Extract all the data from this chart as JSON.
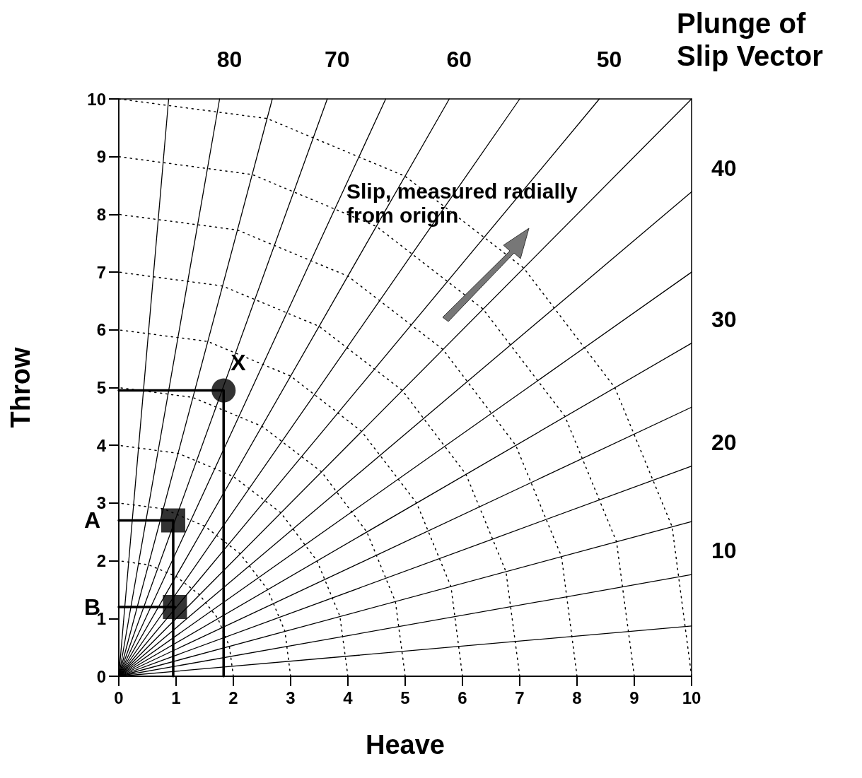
{
  "chart_data": {
    "type": "scatter",
    "xlabel": "Heave",
    "ylabel": "Throw",
    "xlim": [
      0,
      10
    ],
    "ylim": [
      0,
      10
    ],
    "xticks": [
      0,
      1,
      2,
      3,
      4,
      5,
      6,
      7,
      8,
      9,
      10
    ],
    "yticks": [
      0,
      1,
      2,
      3,
      4,
      5,
      6,
      7,
      8,
      9,
      10
    ],
    "grid": false,
    "annotations": [
      "Plunge of Slip Vector",
      "Slip, measured radially from origin",
      {
        "text": "80",
        "x": 1.76,
        "y": 10
      },
      {
        "text": "70",
        "x": 3.64,
        "y": 10
      },
      {
        "text": "60",
        "x": 5.77,
        "y": 10
      },
      {
        "text": "50",
        "x": 8.39,
        "y": 10
      },
      {
        "text": "40",
        "x": 10,
        "y": 8.39
      },
      {
        "text": "30",
        "x": 10,
        "y": 5.77
      },
      {
        "text": "20",
        "x": 10,
        "y": 3.64
      },
      {
        "text": "10",
        "x": 10,
        "y": 1.76
      },
      {
        "text": "X",
        "x": 1.83,
        "y": 4.95
      },
      {
        "text": "A",
        "x": 0,
        "y": 2.7
      },
      {
        "text": "B",
        "x": 0,
        "y": 1.2
      }
    ],
    "series": [
      {
        "type": "line",
        "color": "#000000",
        "line_style": "solid",
        "marker": "none",
        "x": [
          0,
          10
        ],
        "values": [
          0,
          0.87
        ]
      },
      {
        "type": "line",
        "color": "#000000",
        "line_style": "solid",
        "marker": "none",
        "x": [
          0,
          10
        ],
        "values": [
          0,
          1.76
        ]
      },
      {
        "type": "line",
        "color": "#000000",
        "line_style": "solid",
        "marker": "none",
        "x": [
          0,
          10
        ],
        "values": [
          0,
          2.68
        ]
      },
      {
        "type": "line",
        "color": "#000000",
        "line_style": "solid",
        "marker": "none",
        "x": [
          0,
          10
        ],
        "values": [
          0,
          3.64
        ]
      },
      {
        "type": "line",
        "color": "#000000",
        "line_style": "solid",
        "marker": "none",
        "x": [
          0,
          10
        ],
        "values": [
          0,
          4.66
        ]
      },
      {
        "type": "line",
        "color": "#000000",
        "line_style": "solid",
        "marker": "none",
        "x": [
          0,
          10
        ],
        "values": [
          0,
          5.77
        ]
      },
      {
        "type": "line",
        "color": "#000000",
        "line_style": "solid",
        "marker": "none",
        "x": [
          0,
          10
        ],
        "values": [
          0,
          7.0
        ]
      },
      {
        "type": "line",
        "color": "#000000",
        "line_style": "solid",
        "marker": "none",
        "x": [
          0,
          10
        ],
        "values": [
          0,
          8.39
        ]
      },
      {
        "type": "line",
        "color": "#000000",
        "line_style": "solid",
        "marker": "none",
        "x": [
          0,
          10
        ],
        "values": [
          0,
          10
        ]
      },
      {
        "type": "line",
        "color": "#000000",
        "line_style": "solid",
        "marker": "none",
        "x": [
          0,
          8.39
        ],
        "values": [
          0,
          10
        ]
      },
      {
        "type": "line",
        "color": "#000000",
        "line_style": "solid",
        "marker": "none",
        "x": [
          0,
          7.0
        ],
        "values": [
          0,
          10
        ]
      },
      {
        "type": "line",
        "color": "#000000",
        "line_style": "solid",
        "marker": "none",
        "x": [
          0,
          5.77
        ],
        "values": [
          0,
          10
        ]
      },
      {
        "type": "line",
        "color": "#000000",
        "line_style": "solid",
        "marker": "none",
        "x": [
          0,
          4.66
        ],
        "values": [
          0,
          10
        ]
      },
      {
        "type": "line",
        "color": "#000000",
        "line_style": "solid",
        "marker": "none",
        "x": [
          0,
          3.64
        ],
        "values": [
          0,
          10
        ]
      },
      {
        "type": "line",
        "color": "#000000",
        "line_style": "solid",
        "marker": "none",
        "x": [
          0,
          2.68
        ],
        "values": [
          0,
          10
        ]
      },
      {
        "type": "line",
        "color": "#000000",
        "line_style": "solid",
        "marker": "none",
        "x": [
          0,
          1.76
        ],
        "values": [
          0,
          10
        ]
      },
      {
        "type": "line",
        "color": "#000000",
        "line_style": "solid",
        "marker": "none",
        "x": [
          0,
          0.87
        ],
        "values": [
          0,
          10
        ]
      },
      {
        "type": "line",
        "color": "#000000",
        "line_style": "dotted",
        "marker": "none",
        "x": [
          2,
          1.93,
          1.73,
          1.41,
          1,
          0.52,
          0
        ],
        "values": [
          0,
          0.52,
          1,
          1.41,
          1.73,
          1.93,
          2
        ]
      },
      {
        "type": "line",
        "color": "#000000",
        "line_style": "dotted",
        "marker": "none",
        "x": [
          3,
          2.9,
          2.6,
          2.12,
          1.5,
          0.78,
          0
        ],
        "values": [
          0,
          0.78,
          1.5,
          2.12,
          2.6,
          2.9,
          3
        ]
      },
      {
        "type": "line",
        "color": "#000000",
        "line_style": "dotted",
        "marker": "none",
        "x": [
          4,
          3.86,
          3.46,
          2.83,
          2,
          1.04,
          0
        ],
        "values": [
          0,
          1.04,
          2,
          2.83,
          3.46,
          3.86,
          4
        ]
      },
      {
        "type": "line",
        "color": "#000000",
        "line_style": "dotted",
        "marker": "none",
        "x": [
          5,
          4.83,
          4.33,
          3.54,
          2.5,
          1.29,
          0
        ],
        "values": [
          0,
          1.29,
          2.5,
          3.54,
          4.33,
          4.83,
          5
        ]
      },
      {
        "type": "line",
        "color": "#000000",
        "line_style": "dotted",
        "marker": "none",
        "x": [
          6,
          5.8,
          5.2,
          4.24,
          3,
          1.55,
          0
        ],
        "values": [
          0,
          1.55,
          3,
          4.24,
          5.2,
          5.8,
          6
        ]
      },
      {
        "type": "line",
        "color": "#000000",
        "line_style": "dotted",
        "marker": "none",
        "x": [
          7,
          6.76,
          6.06,
          4.95,
          3.5,
          1.81,
          0
        ],
        "values": [
          0,
          1.81,
          3.5,
          4.95,
          6.06,
          6.76,
          7
        ]
      },
      {
        "type": "line",
        "color": "#000000",
        "line_style": "dotted",
        "marker": "none",
        "x": [
          8,
          7.73,
          6.93,
          5.66,
          4,
          2.07,
          0
        ],
        "values": [
          0,
          2.07,
          4,
          5.66,
          6.93,
          7.73,
          8
        ]
      },
      {
        "type": "line",
        "color": "#000000",
        "line_style": "dotted",
        "marker": "none",
        "x": [
          9,
          8.69,
          7.79,
          6.36,
          4.5,
          2.33,
          0
        ],
        "values": [
          0,
          2.33,
          4.5,
          6.36,
          7.79,
          8.69,
          9
        ]
      },
      {
        "type": "line",
        "color": "#000000",
        "line_style": "dotted",
        "marker": "none",
        "x": [
          10,
          9.66,
          8.66,
          7.07,
          5,
          2.59,
          0
        ],
        "values": [
          0,
          2.59,
          5,
          7.07,
          8.66,
          9.66,
          10
        ]
      },
      {
        "type": "line",
        "color": "#000000",
        "line_style": "solid",
        "marker": "none",
        "x": [
          0,
          1.83,
          1.83
        ],
        "values": [
          4.95,
          4.95,
          0
        ]
      },
      {
        "type": "line",
        "color": "#000000",
        "line_style": "solid",
        "marker": "none",
        "x": [
          0,
          0.95,
          0.95
        ],
        "values": [
          2.7,
          2.7,
          0
        ]
      },
      {
        "type": "line",
        "color": "#000000",
        "line_style": "solid",
        "marker": "none",
        "x": [
          0,
          0.98
        ],
        "values": [
          1.2,
          1.2
        ]
      },
      {
        "color": "#000000",
        "marker": "circle",
        "x": [
          1.83
        ],
        "values": [
          4.95
        ]
      },
      {
        "color": "#000000",
        "marker": "square",
        "x": [
          0.95,
          0.98
        ],
        "values": [
          2.7,
          1.2
        ]
      }
    ]
  }
}
